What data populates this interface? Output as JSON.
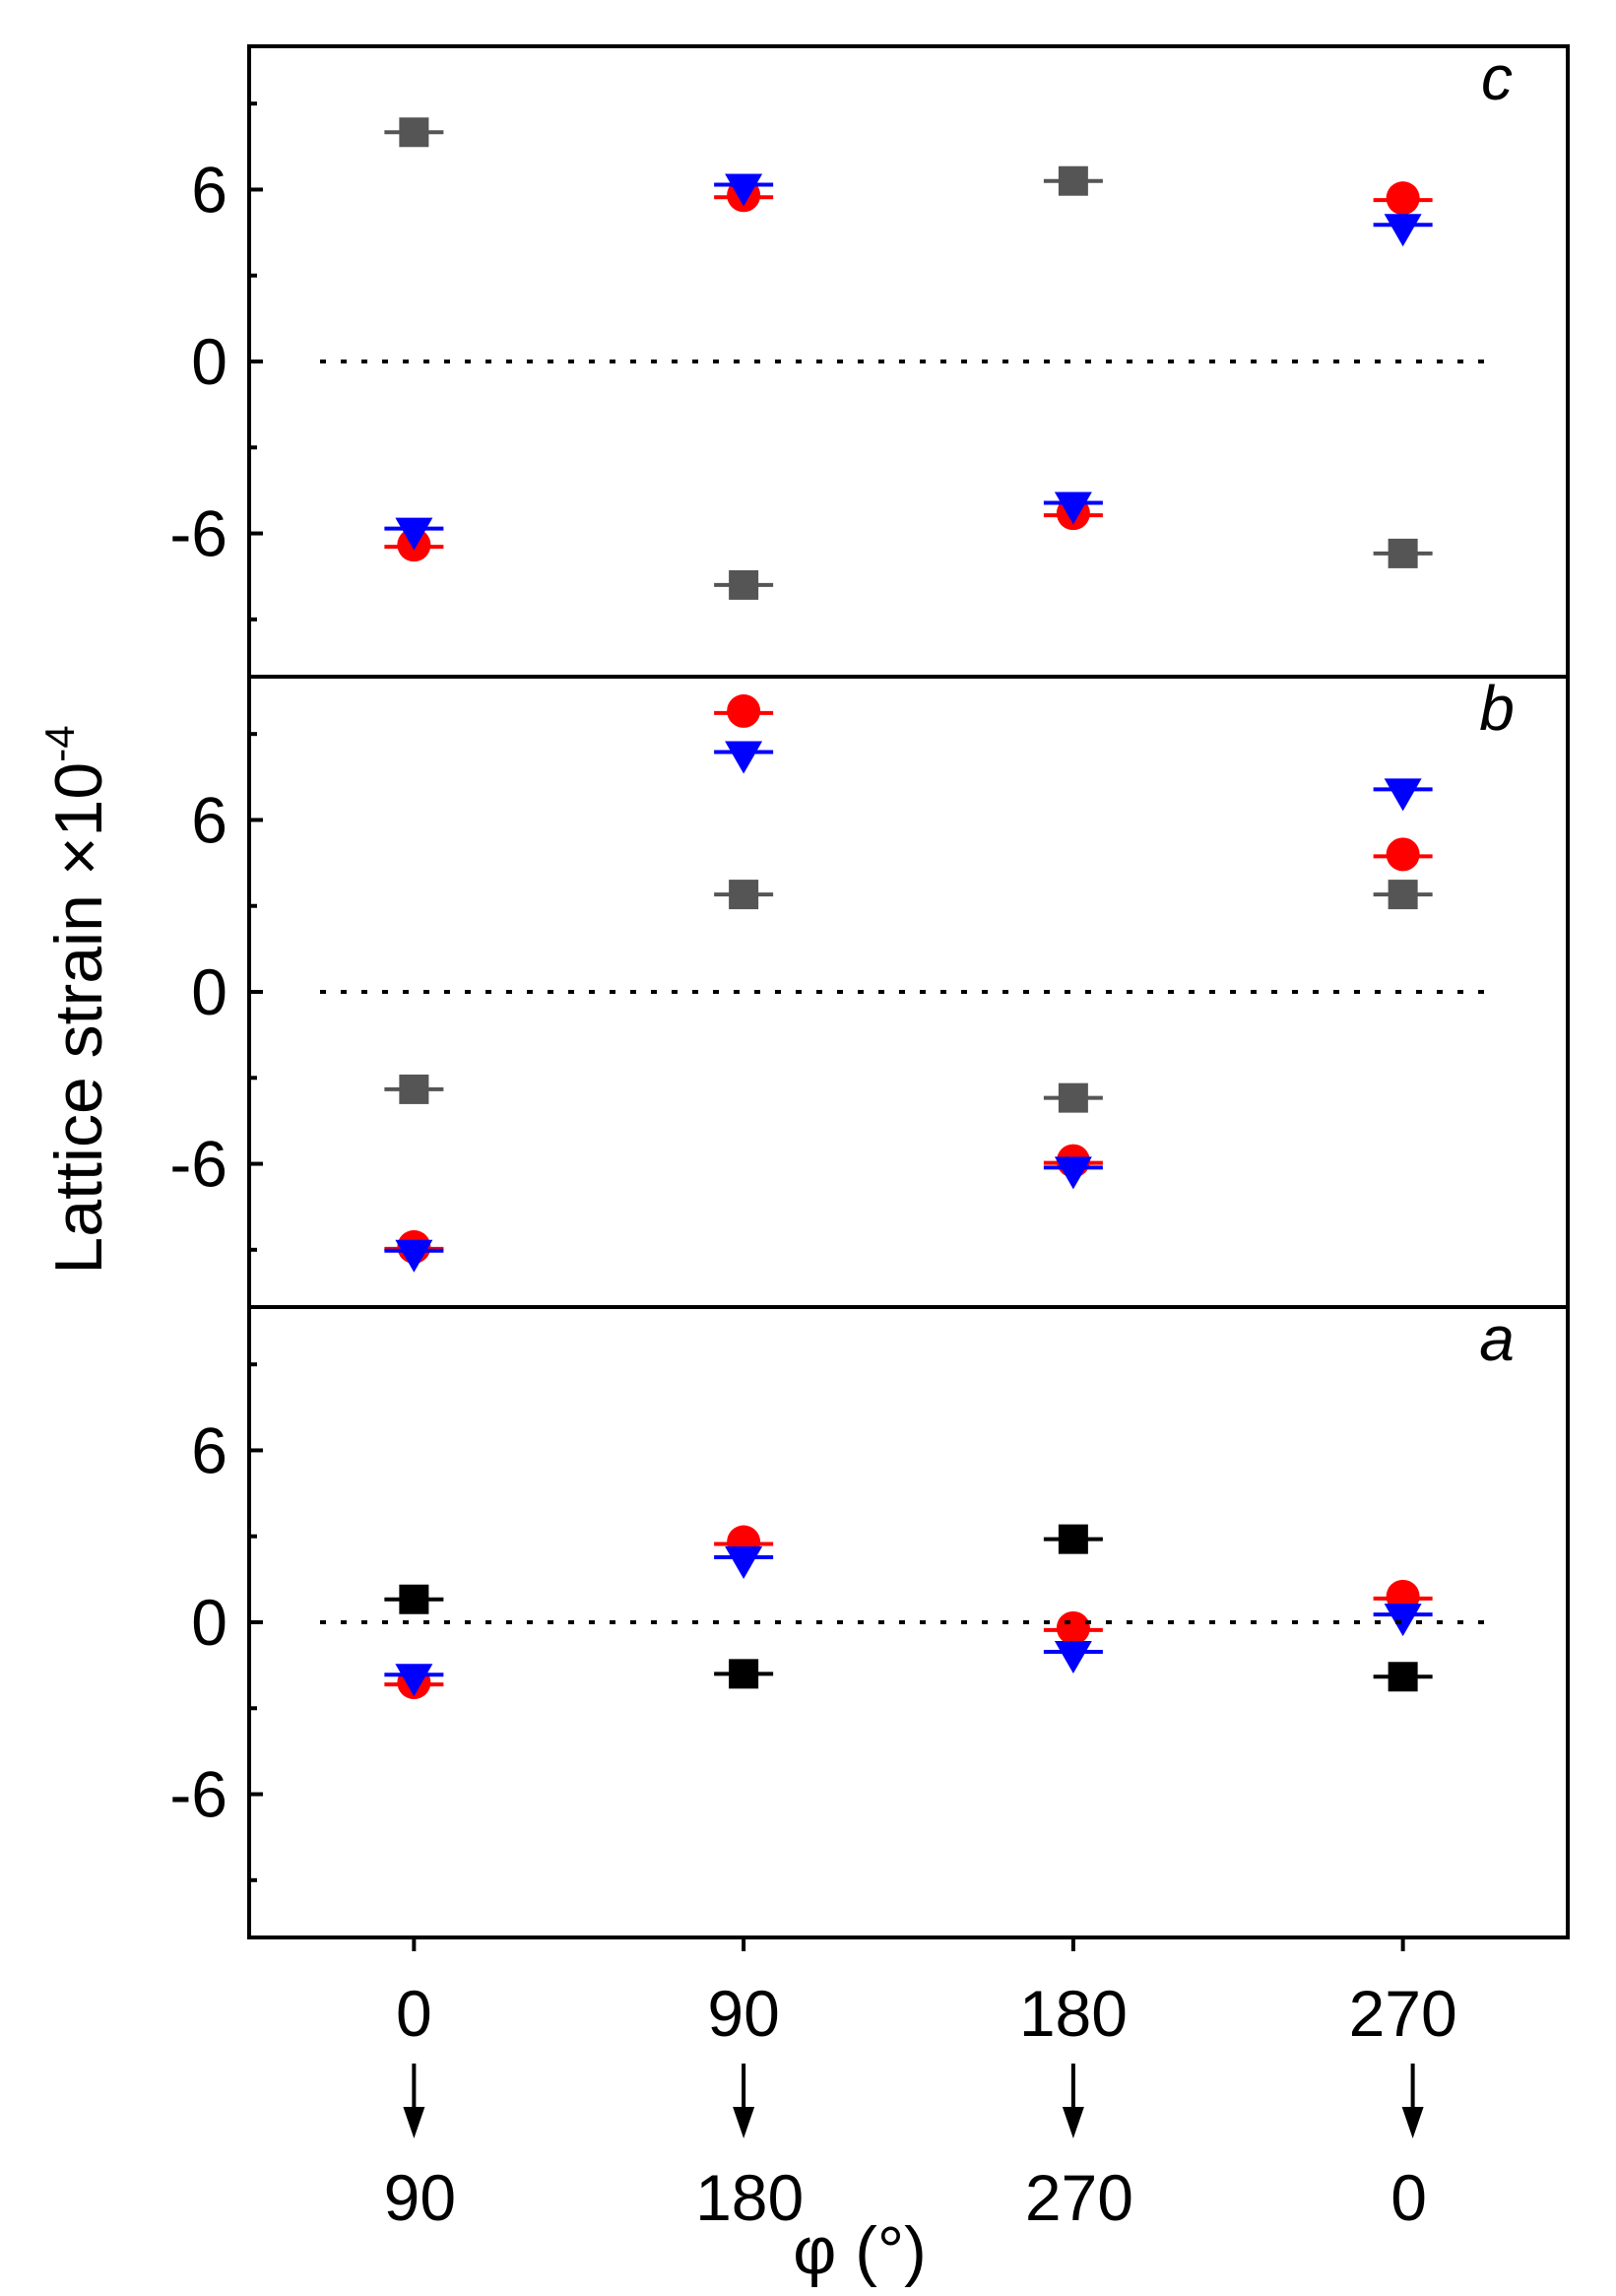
{
  "chart_data": {
    "type": "scatter",
    "xlabel": "φ (°)",
    "ylabel": "Lattice strain ×10",
    "ylabel_exponent": "-4",
    "x_positions": [
      0,
      90,
      180,
      270
    ],
    "x_tick_labels": [
      "0",
      "90",
      "180",
      "270"
    ],
    "x_tick_labels_second_row": [
      "90",
      "180",
      "270",
      "0"
    ],
    "x_arrow_symbol": "↓",
    "xlim": [
      -45,
      315
    ],
    "ylim": [
      -11,
      11
    ],
    "y_ticks": [
      6,
      0,
      -6
    ],
    "y_tick_labels": [
      "6",
      "0",
      "-6"
    ],
    "zero_line": "dotted",
    "colors": {
      "gray": "#555555",
      "black": "#000000",
      "red": "#ff0000",
      "blue": "#0000ff"
    },
    "panels": [
      {
        "label": "c",
        "series": [
          {
            "name": "square",
            "marker": "square",
            "color": "#555555",
            "values": [
              8.0,
              -7.8,
              6.3,
              -6.7
            ]
          },
          {
            "name": "circle",
            "marker": "circle",
            "color": "#ff0000",
            "values": [
              -6.4,
              5.8,
              -5.3,
              5.7
            ]
          },
          {
            "name": "triangle",
            "marker": "triangle-down",
            "color": "#0000ff",
            "values": [
              -5.9,
              6.1,
              -5.0,
              4.7
            ]
          }
        ]
      },
      {
        "label": "b",
        "series": [
          {
            "name": "square",
            "marker": "square",
            "color": "#555555",
            "values": [
              -3.4,
              3.4,
              -3.7,
              3.4
            ]
          },
          {
            "name": "circle",
            "marker": "circle",
            "color": "#ff0000",
            "values": [
              -8.9,
              9.8,
              -5.9,
              4.8
            ]
          },
          {
            "name": "triangle",
            "marker": "triangle-down",
            "color": "#0000ff",
            "values": [
              -9.1,
              8.3,
              -6.2,
              7.0
            ]
          }
        ]
      },
      {
        "label": "a",
        "series": [
          {
            "name": "square",
            "marker": "square",
            "color": "#000000",
            "values": [
              0.8,
              -1.8,
              2.9,
              -1.9
            ]
          },
          {
            "name": "circle",
            "marker": "circle",
            "color": "#ff0000",
            "values": [
              -2.1,
              2.8,
              -0.2,
              0.9
            ]
          },
          {
            "name": "triangle",
            "marker": "triangle-down",
            "color": "#0000ff",
            "values": [
              -1.9,
              2.2,
              -1.1,
              0.2
            ]
          }
        ]
      }
    ]
  }
}
